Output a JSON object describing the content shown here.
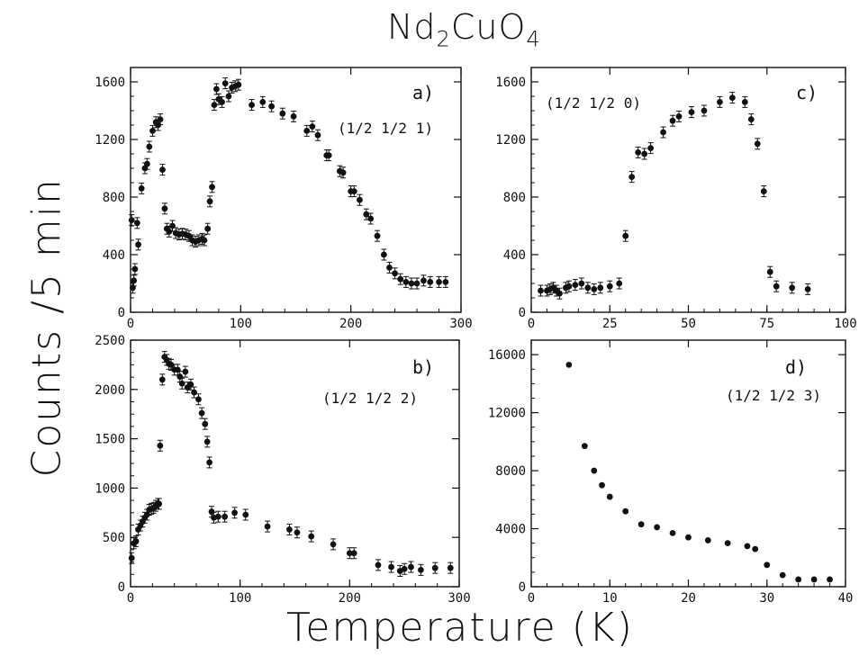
{
  "figure": {
    "title_main": "Nd",
    "title_sub": "2",
    "title_rest": "CuO",
    "title_sub2": "4",
    "ylabel": "Counts /5 min",
    "xlabel": "Temperature (K)"
  },
  "chart_data": [
    {
      "type": "scatter",
      "panel": "a)",
      "annotation": "(1/2 1/2 1)",
      "xlim": [
        0,
        300
      ],
      "ylim": [
        0,
        1700
      ],
      "xticks": [
        0,
        100,
        200,
        300
      ],
      "yticks": [
        0,
        400,
        800,
        1200,
        1600
      ],
      "error_bars": true,
      "points": [
        [
          1,
          640
        ],
        [
          2,
          170
        ],
        [
          3,
          220
        ],
        [
          4,
          300
        ],
        [
          6,
          620
        ],
        [
          7,
          470
        ],
        [
          10,
          860
        ],
        [
          13,
          1000
        ],
        [
          15,
          1030
        ],
        [
          17,
          1150
        ],
        [
          20,
          1260
        ],
        [
          23,
          1320
        ],
        [
          25,
          1300
        ],
        [
          27,
          1340
        ],
        [
          29,
          990
        ],
        [
          31,
          720
        ],
        [
          33,
          580
        ],
        [
          35,
          560
        ],
        [
          38,
          600
        ],
        [
          41,
          550
        ],
        [
          44,
          540
        ],
        [
          47,
          545
        ],
        [
          50,
          540
        ],
        [
          53,
          530
        ],
        [
          56,
          500
        ],
        [
          59,
          490
        ],
        [
          62,
          500
        ],
        [
          65,
          510
        ],
        [
          67,
          500
        ],
        [
          70,
          580
        ],
        [
          72,
          770
        ],
        [
          74,
          870
        ],
        [
          76,
          1440
        ],
        [
          78,
          1550
        ],
        [
          80,
          1480
        ],
        [
          83,
          1460
        ],
        [
          86,
          1590
        ],
        [
          89,
          1500
        ],
        [
          92,
          1560
        ],
        [
          95,
          1570
        ],
        [
          98,
          1580
        ],
        [
          110,
          1440
        ],
        [
          120,
          1460
        ],
        [
          128,
          1430
        ],
        [
          138,
          1380
        ],
        [
          148,
          1360
        ],
        [
          160,
          1260
        ],
        [
          165,
          1290
        ],
        [
          170,
          1230
        ],
        [
          178,
          1090
        ],
        [
          180,
          1090
        ],
        [
          190,
          980
        ],
        [
          193,
          970
        ],
        [
          200,
          840
        ],
        [
          203,
          840
        ],
        [
          208,
          780
        ],
        [
          214,
          680
        ],
        [
          218,
          650
        ],
        [
          224,
          530
        ],
        [
          230,
          400
        ],
        [
          235,
          310
        ],
        [
          240,
          270
        ],
        [
          245,
          230
        ],
        [
          250,
          210
        ],
        [
          255,
          200
        ],
        [
          260,
          200
        ],
        [
          266,
          220
        ],
        [
          272,
          210
        ],
        [
          280,
          210
        ],
        [
          286,
          210
        ]
      ]
    },
    {
      "type": "scatter",
      "panel": "b)",
      "annotation": "(1/2 1/2 2)",
      "xlim": [
        0,
        300
      ],
      "ylim": [
        0,
        2500
      ],
      "xticks": [
        0,
        100,
        200,
        300
      ],
      "yticks": [
        0,
        500,
        1000,
        1500,
        2000,
        2500
      ],
      "error_bars": true,
      "points": [
        [
          1,
          290
        ],
        [
          3,
          440
        ],
        [
          5,
          460
        ],
        [
          7,
          580
        ],
        [
          9,
          620
        ],
        [
          11,
          660
        ],
        [
          13,
          700
        ],
        [
          15,
          730
        ],
        [
          17,
          780
        ],
        [
          19,
          790
        ],
        [
          21,
          800
        ],
        [
          23,
          820
        ],
        [
          25,
          840
        ],
        [
          26,
          840
        ],
        [
          27,
          1430
        ],
        [
          29,
          2100
        ],
        [
          31,
          2330
        ],
        [
          33,
          2300
        ],
        [
          35,
          2260
        ],
        [
          37,
          2250
        ],
        [
          40,
          2200
        ],
        [
          43,
          2200
        ],
        [
          45,
          2130
        ],
        [
          47,
          2060
        ],
        [
          50,
          2180
        ],
        [
          52,
          2020
        ],
        [
          55,
          2050
        ],
        [
          58,
          1970
        ],
        [
          62,
          1900
        ],
        [
          65,
          1760
        ],
        [
          68,
          1650
        ],
        [
          70,
          1470
        ],
        [
          72,
          1260
        ],
        [
          74,
          760
        ],
        [
          76,
          700
        ],
        [
          80,
          710
        ],
        [
          86,
          710
        ],
        [
          95,
          750
        ],
        [
          105,
          730
        ],
        [
          125,
          610
        ],
        [
          145,
          580
        ],
        [
          152,
          550
        ],
        [
          165,
          510
        ],
        [
          185,
          430
        ],
        [
          200,
          340
        ],
        [
          204,
          340
        ],
        [
          226,
          220
        ],
        [
          238,
          200
        ],
        [
          246,
          160
        ],
        [
          250,
          180
        ],
        [
          256,
          200
        ],
        [
          265,
          170
        ],
        [
          278,
          190
        ],
        [
          292,
          190
        ]
      ]
    },
    {
      "type": "scatter",
      "panel": "c)",
      "annotation": "(1/2 1/2 0)",
      "xlim": [
        0,
        100
      ],
      "ylim": [
        0,
        1700
      ],
      "xticks": [
        0,
        25,
        50,
        75,
        100
      ],
      "yticks": [
        0,
        400,
        800,
        1200,
        1600
      ],
      "error_bars": true,
      "points": [
        [
          3,
          150
        ],
        [
          5,
          150
        ],
        [
          6,
          160
        ],
        [
          7,
          170
        ],
        [
          8,
          150
        ],
        [
          9,
          130
        ],
        [
          11,
          170
        ],
        [
          12,
          180
        ],
        [
          14,
          190
        ],
        [
          16,
          200
        ],
        [
          18,
          170
        ],
        [
          20,
          160
        ],
        [
          22,
          170
        ],
        [
          25,
          180
        ],
        [
          28,
          200
        ],
        [
          30,
          530
        ],
        [
          32,
          940
        ],
        [
          34,
          1110
        ],
        [
          36,
          1100
        ],
        [
          38,
          1140
        ],
        [
          42,
          1250
        ],
        [
          45,
          1330
        ],
        [
          47,
          1360
        ],
        [
          51,
          1390
        ],
        [
          55,
          1400
        ],
        [
          60,
          1460
        ],
        [
          64,
          1490
        ],
        [
          68,
          1460
        ],
        [
          70,
          1340
        ],
        [
          72,
          1170
        ],
        [
          74,
          840
        ],
        [
          76,
          280
        ],
        [
          78,
          180
        ],
        [
          83,
          170
        ],
        [
          88,
          160
        ]
      ]
    },
    {
      "type": "scatter",
      "panel": "d)",
      "annotation": "(1/2 1/2 3)",
      "xlim": [
        0,
        40
      ],
      "ylim": [
        0,
        17000
      ],
      "xticks": [
        0,
        10,
        20,
        30,
        40
      ],
      "yticks": [
        0,
        4000,
        8000,
        12000,
        16000
      ],
      "error_bars": false,
      "points": [
        [
          4.8,
          15300
        ],
        [
          6.8,
          9700
        ],
        [
          8,
          8000
        ],
        [
          9,
          7000
        ],
        [
          10,
          6200
        ],
        [
          12,
          5200
        ],
        [
          14,
          4300
        ],
        [
          16,
          4100
        ],
        [
          18,
          3700
        ],
        [
          20,
          3400
        ],
        [
          22.5,
          3200
        ],
        [
          25,
          3000
        ],
        [
          27.5,
          2800
        ],
        [
          28.5,
          2600
        ],
        [
          30,
          1500
        ],
        [
          32,
          800
        ],
        [
          34,
          500
        ],
        [
          36,
          500
        ],
        [
          38,
          500
        ]
      ]
    }
  ]
}
